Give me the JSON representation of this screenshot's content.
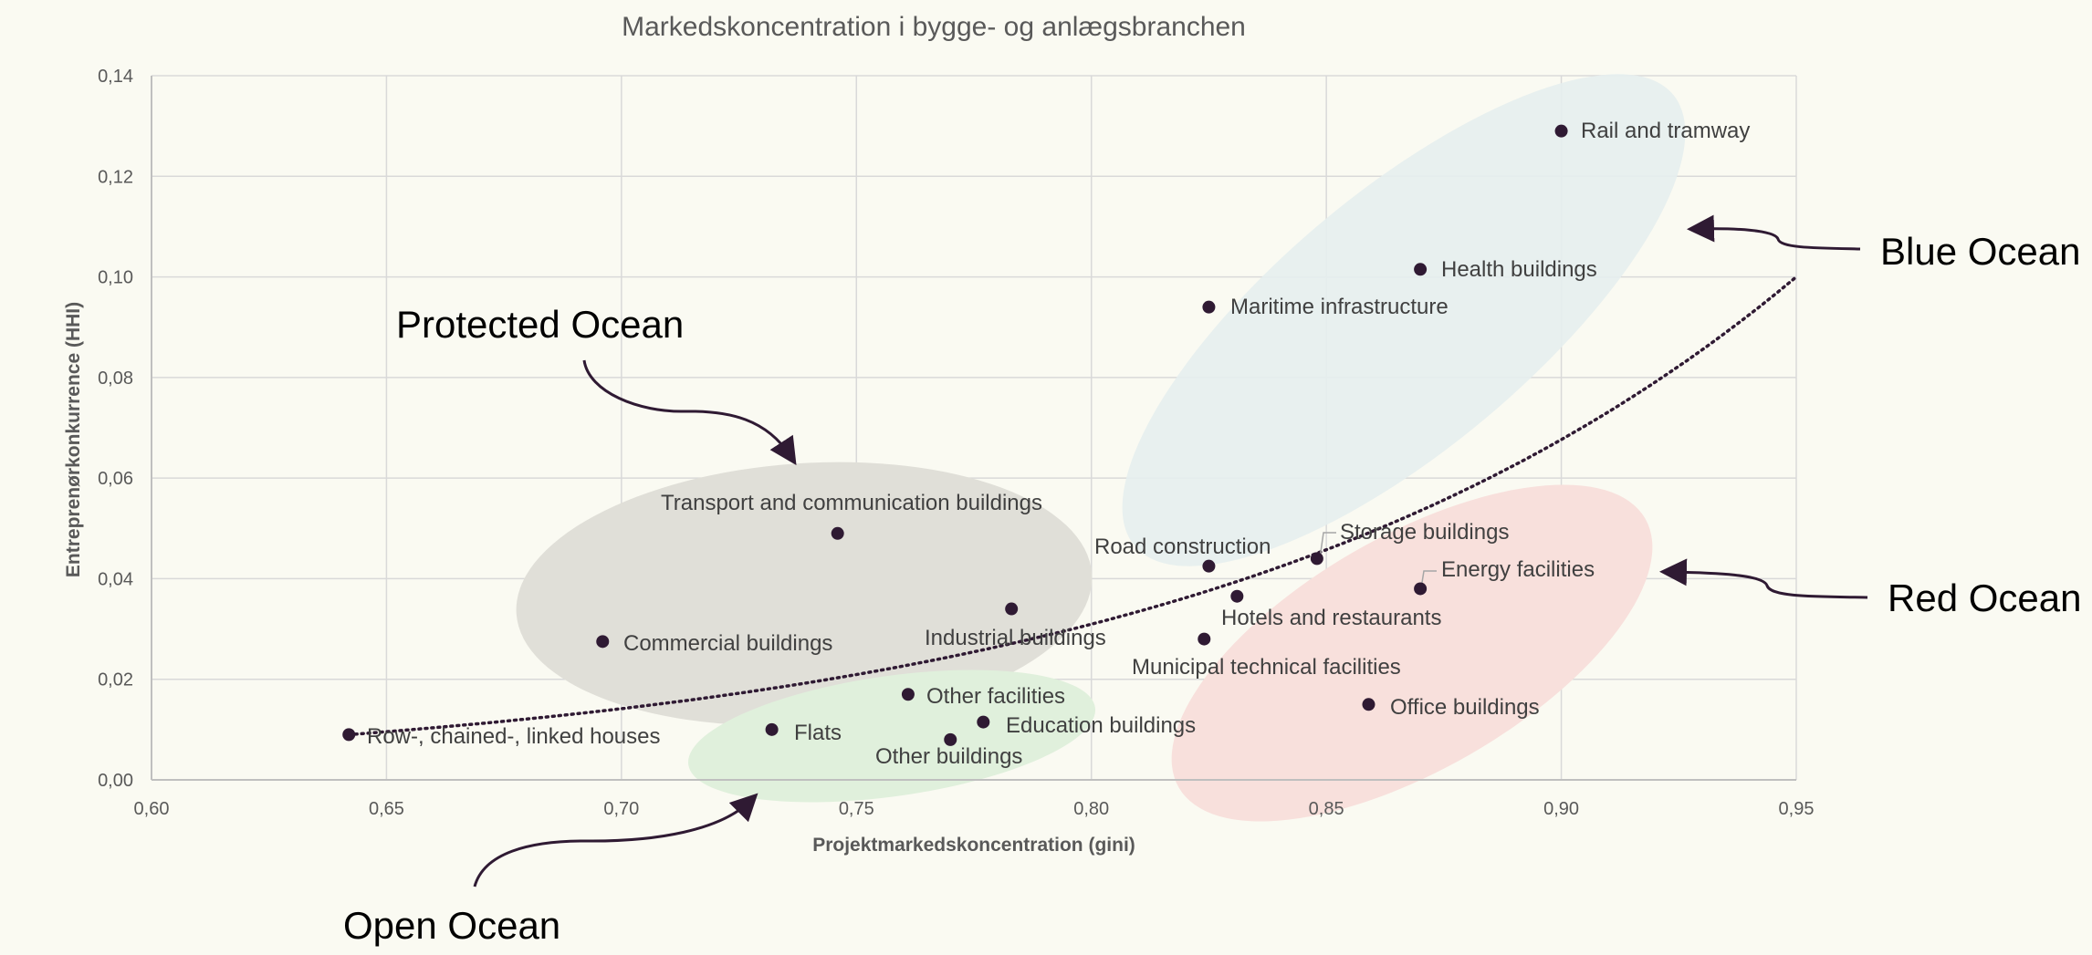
{
  "chart_data": {
    "type": "scatter",
    "title": "Markedskoncentration i bygge- og anlægsbranchen",
    "xlabel": "Projektmarkedskoncentration (gini)",
    "ylabel": "Entreprenørkonkurrence (HHI)",
    "xlim": [
      0.6,
      0.95
    ],
    "ylim": [
      0.0,
      0.14
    ],
    "xticks": [
      "0,60",
      "0,65",
      "0,70",
      "0,75",
      "0,80",
      "0,85",
      "0,90",
      "0,95"
    ],
    "yticks": [
      "0,00",
      "0,02",
      "0,04",
      "0,06",
      "0,08",
      "0,10",
      "0,12",
      "0,14"
    ],
    "grid": true,
    "points": [
      {
        "label": "Rail and tramway",
        "x": 0.9,
        "y": 0.129
      },
      {
        "label": "Health buildings",
        "x": 0.87,
        "y": 0.1015
      },
      {
        "label": "Maritime infrastructure",
        "x": 0.825,
        "y": 0.094
      },
      {
        "label": "Transport and communication buildings",
        "x": 0.746,
        "y": 0.049
      },
      {
        "label": "Commercial buildings",
        "x": 0.696,
        "y": 0.0275
      },
      {
        "label": "Industrial buildings",
        "x": 0.783,
        "y": 0.034
      },
      {
        "label": "Road construction",
        "x": 0.825,
        "y": 0.0425
      },
      {
        "label": "Storage buildings",
        "x": 0.848,
        "y": 0.044
      },
      {
        "label": "Energy facilities",
        "x": 0.87,
        "y": 0.038
      },
      {
        "label": "Hotels and restaurants",
        "x": 0.831,
        "y": 0.0365
      },
      {
        "label": "Municipal technical facilities",
        "x": 0.824,
        "y": 0.028
      },
      {
        "label": "Office buildings",
        "x": 0.859,
        "y": 0.015
      },
      {
        "label": "Other facilities",
        "x": 0.761,
        "y": 0.017
      },
      {
        "label": "Education buildings",
        "x": 0.777,
        "y": 0.0115
      },
      {
        "label": "Other buildings",
        "x": 0.77,
        "y": 0.008
      },
      {
        "label": "Flats",
        "x": 0.732,
        "y": 0.01
      },
      {
        "label": "Row-, chained-, linked houses",
        "x": 0.642,
        "y": 0.009
      }
    ],
    "trendline": {
      "type": "exponential",
      "style": "dotted",
      "x_range": [
        0.642,
        0.95
      ],
      "y_start": 0.009,
      "y_end": 0.1
    },
    "annotations": {
      "blue": "Blue Ocean",
      "red": "Red Ocean",
      "protected": "Protected Ocean",
      "open": "Open Ocean"
    },
    "colors": {
      "point": "#2f1a33",
      "blue_zone": "#e6eeee",
      "red_zone": "#f8e0dc",
      "gray_zone": "#e0dfd8",
      "green_zone": "#e0f0dc"
    }
  }
}
